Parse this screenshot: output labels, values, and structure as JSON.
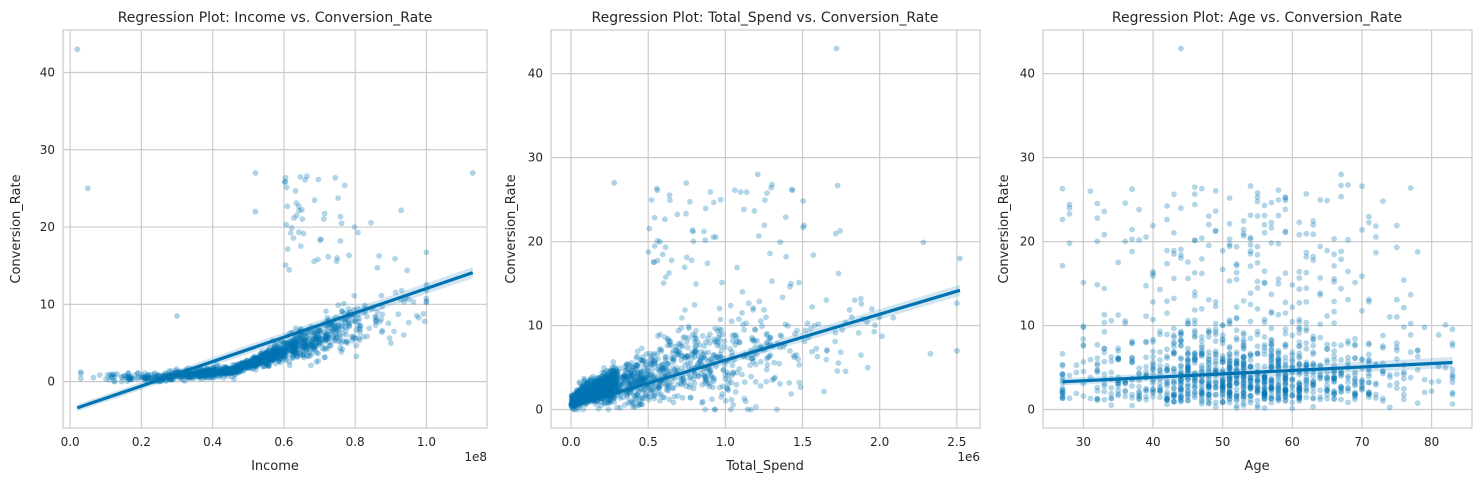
{
  "colors": {
    "point": "#0173b2",
    "line": "#0173b2",
    "band": "#7fb6d8",
    "grid": "#cccccc",
    "frame": "#cccccc",
    "background": "#ffffff"
  },
  "chart_data": [
    {
      "type": "scatter",
      "title": "Regression Plot: Income vs. Conversion_Rate",
      "xlabel": "Income",
      "ylabel": "Conversion_Rate",
      "x_offset_label": "1e8",
      "xlim": [
        -0.02,
        1.17
      ],
      "ylim": [
        -6,
        45.5
      ],
      "xticks": [
        0.0,
        0.2,
        0.4,
        0.6,
        0.8,
        1.0
      ],
      "xtick_labels": [
        "0.0",
        "0.2",
        "0.4",
        "0.6",
        "0.8",
        "1.0"
      ],
      "yticks": [
        0,
        10,
        20,
        30,
        40
      ],
      "ytick_labels": [
        "0",
        "10",
        "20",
        "30",
        "40"
      ],
      "grid": true,
      "regression_line": {
        "x": [
          0.02,
          1.13
        ],
        "y": [
          -3.4,
          14.1
        ]
      },
      "outliers": [
        [
          0.02,
          43
        ],
        [
          0.05,
          25
        ],
        [
          1.13,
          27
        ],
        [
          0.52,
          27
        ],
        [
          0.52,
          22
        ],
        [
          0.3,
          8.5
        ]
      ],
      "sample_points": 1500
    },
    {
      "type": "scatter",
      "title": "Regression Plot: Total_Spend vs. Conversion_Rate",
      "xlabel": "Total_Spend",
      "ylabel": "Conversion_Rate",
      "x_offset_label": "1e6",
      "xlim": [
        -0.13,
        2.65
      ],
      "ylim": [
        -2.2,
        45.2
      ],
      "xticks": [
        0.0,
        0.5,
        1.0,
        1.5,
        2.0,
        2.5
      ],
      "xtick_labels": [
        "0.0",
        "0.5",
        "1.0",
        "1.5",
        "2.0",
        "2.5"
      ],
      "yticks": [
        0,
        10,
        20,
        30,
        40
      ],
      "ytick_labels": [
        "0",
        "10",
        "20",
        "30",
        "40"
      ],
      "grid": true,
      "regression_line": {
        "x": [
          0.0,
          2.52
        ],
        "y": [
          0.4,
          14.2
        ]
      },
      "outliers": [
        [
          1.72,
          43
        ],
        [
          0.28,
          27
        ],
        [
          1.21,
          28
        ],
        [
          2.52,
          18
        ],
        [
          2.5,
          7
        ]
      ],
      "sample_points": 1500
    },
    {
      "type": "scatter",
      "title": "Regression Plot: Age vs. Conversion_Rate",
      "xlabel": "Age",
      "ylabel": "Conversion_Rate",
      "x_offset_label": "",
      "xlim": [
        24.2,
        85.8
      ],
      "ylim": [
        -2.2,
        45.2
      ],
      "xticks": [
        30,
        40,
        50,
        60,
        70,
        80
      ],
      "xtick_labels": [
        "30",
        "40",
        "50",
        "60",
        "70",
        "80"
      ],
      "yticks": [
        0,
        10,
        20,
        30,
        40
      ],
      "ytick_labels": [
        "0",
        "10",
        "20",
        "30",
        "40"
      ],
      "grid": true,
      "regression_line": {
        "x": [
          27,
          83
        ],
        "y": [
          3.3,
          5.6
        ]
      },
      "outliers": [
        [
          44,
          43
        ],
        [
          28,
          24
        ],
        [
          67,
          28
        ],
        [
          83,
          2
        ]
      ],
      "sample_points": 1300
    }
  ]
}
